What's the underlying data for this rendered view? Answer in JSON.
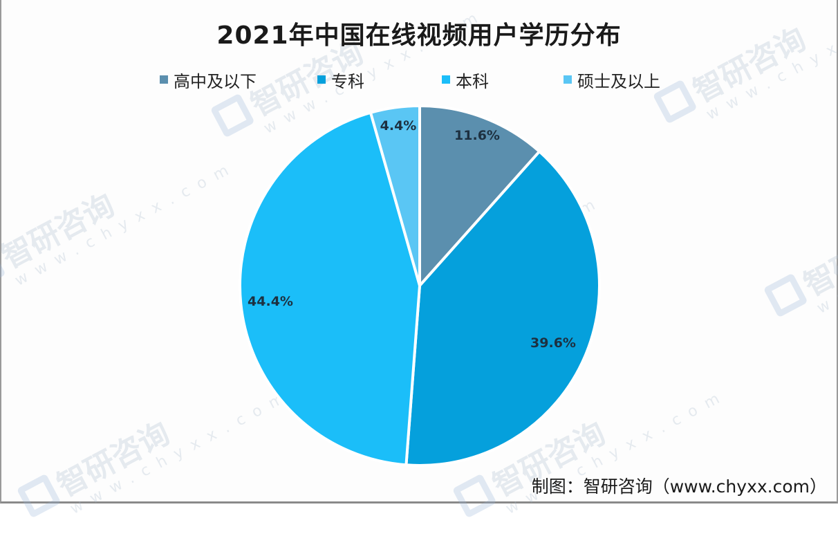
{
  "title": "2021年中国在线视频用户学历分布",
  "legend": [
    {
      "label": "高中及以下",
      "color": "#5B8FAE"
    },
    {
      "label": "专科",
      "color": "#05A0DC"
    },
    {
      "label": "本科",
      "color": "#1BBEF9"
    },
    {
      "label": "硕士及以上",
      "color": "#5AC6F4"
    }
  ],
  "slice_labels": [
    "11.6%",
    "39.6%",
    "44.4%",
    "4.4%"
  ],
  "source": "制图：智研咨询（www.chyxx.com）",
  "watermark": {
    "cn": "智研咨询",
    "url": "www.chyxx.com"
  },
  "chart_data": {
    "type": "pie",
    "title": "2021年中国在线视频用户学历分布",
    "categories": [
      "高中及以下",
      "专科",
      "本科",
      "硕士及以上"
    ],
    "values": [
      11.6,
      39.6,
      44.4,
      4.4
    ],
    "unit": "%",
    "colors": [
      "#5B8FAE",
      "#05A0DC",
      "#1BBEF9",
      "#5AC6F4"
    ],
    "start_angle": "12 o'clock",
    "direction": "clockwise",
    "legend_position": "top",
    "data_labels": [
      "11.6%",
      "39.6%",
      "44.4%",
      "4.4%"
    ],
    "source": "制图：智研咨询（www.chyxx.com）"
  }
}
